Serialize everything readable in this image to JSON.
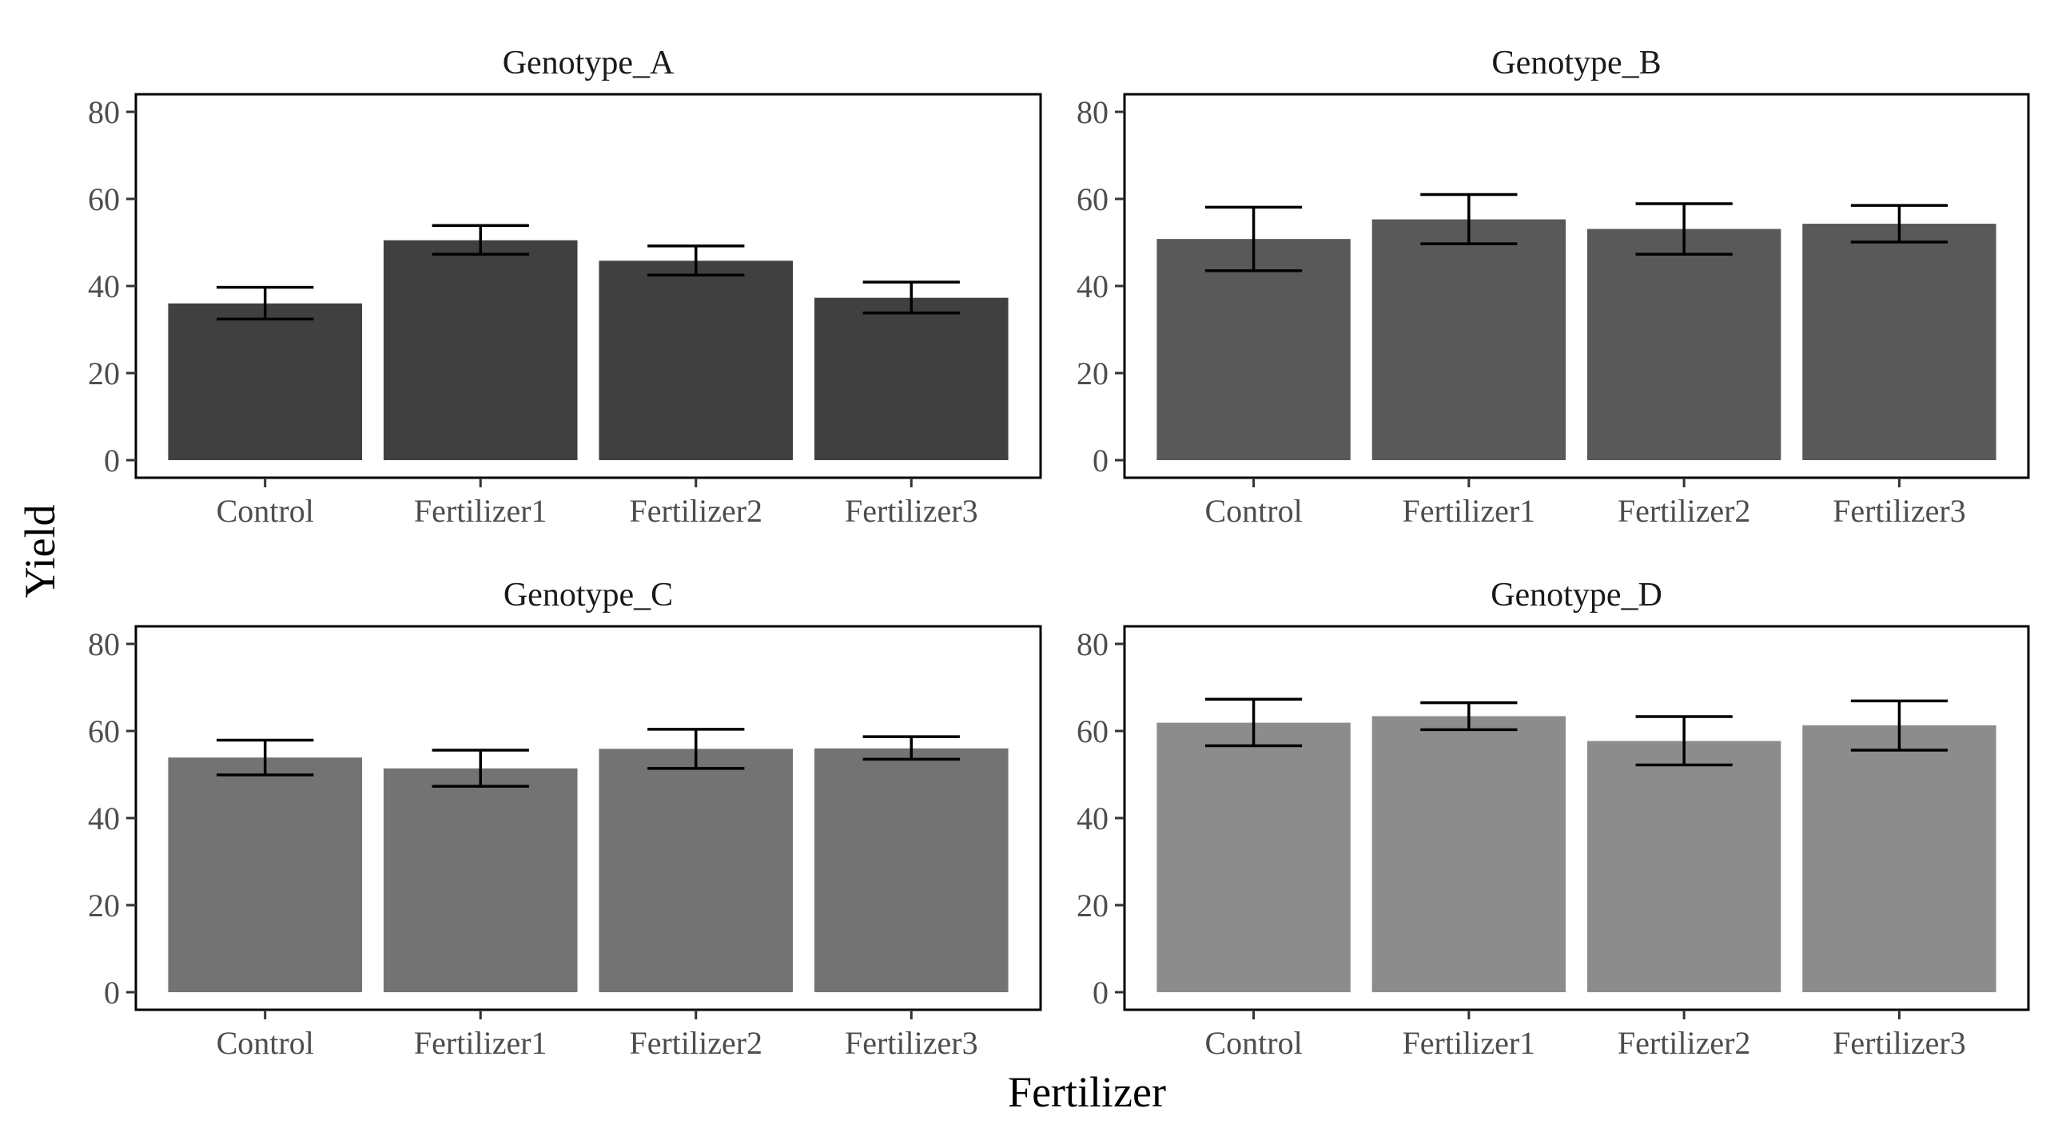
{
  "chart_data": {
    "type": "bar",
    "xlabel": "Fertilizer",
    "ylabel": "Yield",
    "ylim": [
      0,
      80
    ],
    "yticks": [
      0,
      20,
      40,
      60,
      80
    ],
    "grid": false,
    "categories": [
      "Control",
      "Fertilizer1",
      "Fertilizer2",
      "Fertilizer3"
    ],
    "panels": [
      {
        "name": "Genotype_A",
        "color": "#404040",
        "values": [
          36.0,
          50.5,
          45.8,
          37.3
        ],
        "error_low": [
          32.4,
          47.3,
          42.5,
          33.8
        ],
        "error_high": [
          39.7,
          53.9,
          49.2,
          40.9
        ]
      },
      {
        "name": "Genotype_B",
        "color": "#595959",
        "values": [
          50.8,
          55.3,
          53.1,
          54.3
        ],
        "error_low": [
          43.5,
          49.7,
          47.3,
          50.1
        ],
        "error_high": [
          58.1,
          61.0,
          58.9,
          58.5
        ]
      },
      {
        "name": "Genotype_C",
        "color": "#737373",
        "values": [
          53.9,
          51.4,
          55.9,
          56.0
        ],
        "error_low": [
          49.9,
          47.3,
          51.4,
          53.5
        ],
        "error_high": [
          57.9,
          55.6,
          60.4,
          58.7
        ]
      },
      {
        "name": "Genotype_D",
        "color": "#8c8c8c",
        "values": [
          61.9,
          63.4,
          57.7,
          61.3
        ],
        "error_low": [
          56.6,
          60.3,
          52.2,
          55.6
        ],
        "error_high": [
          67.3,
          66.5,
          63.3,
          66.9
        ]
      }
    ]
  }
}
